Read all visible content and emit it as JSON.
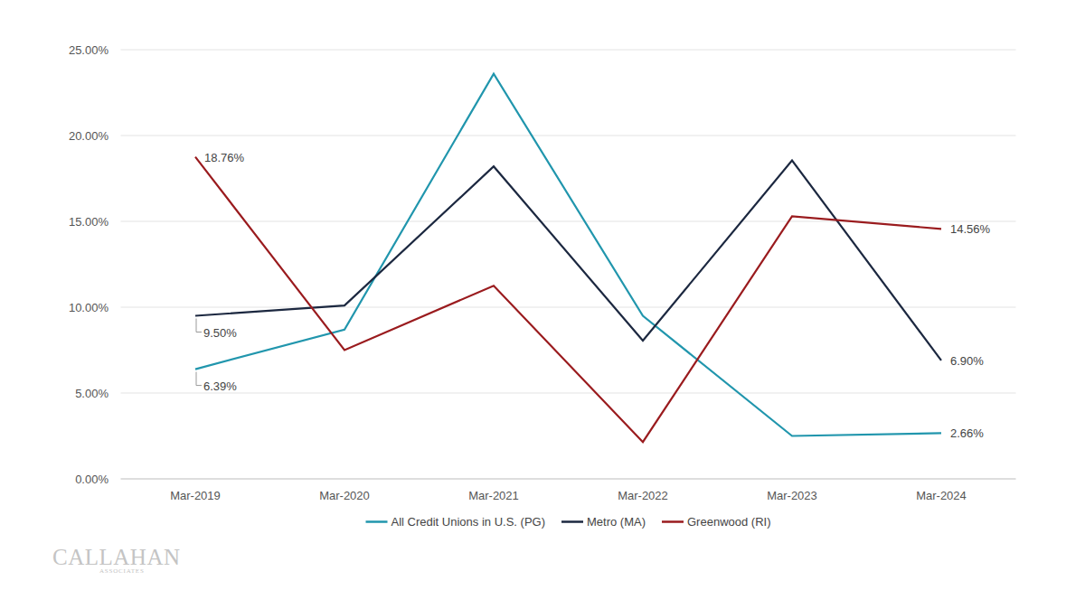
{
  "chart_data": {
    "type": "line",
    "categories": [
      "Mar-2019",
      "Mar-2020",
      "Mar-2021",
      "Mar-2022",
      "Mar-2023",
      "Mar-2024"
    ],
    "series": [
      {
        "name": "All Credit Unions in U.S. (PG)",
        "color": "#2196ad",
        "values": [
          6.39,
          8.7,
          23.6,
          9.5,
          2.5,
          2.66
        ],
        "value_labels": [
          "6.39%",
          null,
          null,
          null,
          null,
          "2.66%"
        ]
      },
      {
        "name": "Metro (MA)",
        "color": "#1c2840",
        "values": [
          9.5,
          10.1,
          18.2,
          8.05,
          18.55,
          6.9
        ],
        "value_labels": [
          "9.50%",
          null,
          null,
          null,
          null,
          "6.90%"
        ]
      },
      {
        "name": "Greenwood (RI)",
        "color": "#9a1b1e",
        "values": [
          18.76,
          7.5,
          11.25,
          2.15,
          15.3,
          14.56
        ],
        "value_labels": [
          "18.76%",
          null,
          null,
          null,
          null,
          "14.56%"
        ]
      }
    ],
    "ylim": [
      0,
      25
    ],
    "yticks": [
      {
        "value": 0,
        "label": "0.00%"
      },
      {
        "value": 5,
        "label": "5.00%"
      },
      {
        "value": 10,
        "label": "10.00%"
      },
      {
        "value": 15,
        "label": "15.00%"
      },
      {
        "value": 20,
        "label": "20.00%"
      },
      {
        "value": 25,
        "label": "25.00%"
      }
    ],
    "grid": true,
    "legend": "bottom",
    "data_labels": true,
    "annotations": [
      "CALLAHAN",
      "ASSOCIATES"
    ]
  }
}
